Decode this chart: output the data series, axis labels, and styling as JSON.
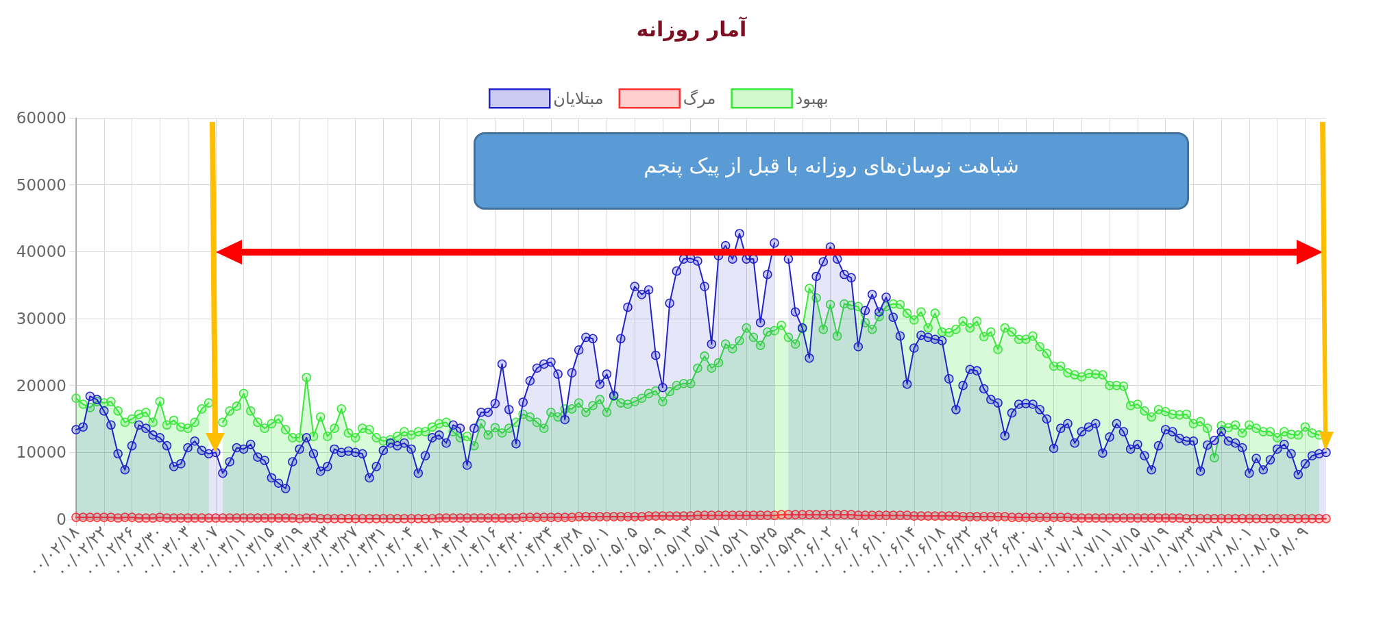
{
  "chart_data": {
    "type": "area",
    "title": "آمار روزانه",
    "annotations": [
      "شباهت نوسان‌های روزانه با قبل از پیک پنجم"
    ],
    "categories": [
      "۰۰/۰۲/۱۸",
      null,
      null,
      null,
      "۰۰/۰۲/۲۲",
      null,
      null,
      null,
      "۰۰/۰۲/۲۶",
      null,
      null,
      null,
      "۰۰/۰۲/۳۰",
      null,
      null,
      null,
      "۰۰/۰۳/۰۳",
      null,
      null,
      null,
      "۰۰/۰۳/۰۷",
      null,
      null,
      null,
      "۰۰/۰۳/۱۱",
      null,
      null,
      null,
      "۰۰/۰۳/۱۵",
      null,
      null,
      null,
      "۰۰/۰۳/۱۹",
      null,
      null,
      null,
      "۰۰/۰۳/۲۳",
      null,
      null,
      null,
      "۰۰/۰۳/۲۷",
      null,
      null,
      null,
      "۰۰/۰۳/۳۱",
      null,
      null,
      null,
      "۰۰/۰۴/۰۴",
      null,
      null,
      null,
      "۰۰/۰۴/۰۸",
      null,
      null,
      null,
      "۰۰/۰۴/۱۲",
      null,
      null,
      null,
      "۰۰/۰۴/۱۶",
      null,
      null,
      null,
      "۰۰/۰۴/۲۰",
      null,
      null,
      null,
      "۰۰/۰۴/۲۴",
      null,
      null,
      null,
      "۰۰/۰۴/۲۸",
      null,
      null,
      null,
      "۰۰/۰۵/۰۱",
      null,
      null,
      null,
      "۰۰/۰۵/۰۵",
      null,
      null,
      null,
      "۰۰/۰۵/۰۹",
      null,
      null,
      null,
      "۰۰/۰۵/۱۳",
      null,
      null,
      null,
      "۰۰/۰۵/۱۷",
      null,
      null,
      null,
      "۰۰/۰۵/۲۱",
      null,
      null,
      null,
      "۰۰/۰۵/۲۵",
      null,
      null,
      null,
      "۰۰/۰۵/۲۹",
      null,
      null,
      null,
      "۰۰/۰۶/۰۲",
      null,
      null,
      null,
      "۰۰/۰۶/۰۶",
      null,
      null,
      null,
      "۰۰/۰۶/۱۰",
      null,
      null,
      null,
      "۰۰/۰۶/۱۴",
      null,
      null,
      null,
      "۰۰/۰۶/۱۸",
      null,
      null,
      null,
      "۰۰/۰۶/۲۲",
      null,
      null,
      null,
      "۰۰/۰۶/۲۶",
      null,
      null,
      null,
      "۰۰/۰۶/۳۰",
      null,
      null,
      null,
      "۰۰/۰۷/۰۳",
      null,
      null,
      null,
      "۰۰/۰۷/۰۷",
      null,
      null,
      null,
      "۰۰/۰۷/۱۱",
      null,
      null,
      null,
      "۰۰/۰۷/۱۵",
      null,
      null,
      null,
      "۰۰/۰۷/۱۹",
      null,
      null,
      null,
      "۰۰/۰۷/۲۳",
      null,
      null,
      null,
      "۰۰/۰۷/۲۷",
      null,
      null,
      null,
      "۰۰/۰۸/۰۱",
      null,
      null,
      null,
      "۰۰/۰۸/۰۵",
      null,
      null,
      null,
      "۰۰/۰۸/۰۹",
      null,
      null,
      null
    ],
    "series": [
      {
        "name": "مبتلایان",
        "color": "#2323cc",
        "values": [
          13400,
          13800,
          18400,
          17900,
          16200,
          14100,
          9800,
          7400,
          11000,
          14100,
          13600,
          12600,
          12200,
          11000,
          7900,
          8300,
          10700,
          11700,
          10300,
          9800,
          10000,
          6900,
          8600,
          10700,
          10500,
          11200,
          9300,
          8800,
          6200,
          5400,
          4600,
          8600,
          10500,
          12200,
          9800,
          7200,
          7900,
          10500,
          10000,
          10200,
          10000,
          9800,
          6200,
          7900,
          10300,
          11400,
          11000,
          11400,
          10500,
          6900,
          9500,
          12200,
          12600,
          11400,
          14100,
          13600,
          8100,
          13600,
          16000,
          16000,
          17300,
          23200,
          16400,
          11300,
          17500,
          20700,
          22600,
          23200,
          23500,
          21700,
          14900,
          21900,
          25300,
          27200,
          27000,
          20200,
          21700,
          18500,
          27000,
          31700,
          34800,
          33600,
          34300,
          24500,
          19700,
          32300,
          37100,
          38900,
          39000,
          38600,
          34800,
          26200,
          39400,
          40900,
          38900,
          42700,
          38900,
          38900,
          29400,
          36600,
          41300,
          null,
          38900,
          31000,
          28600,
          24100,
          36300,
          38500,
          40700,
          38900,
          36600,
          36100,
          25800,
          31200,
          33600,
          31000,
          33200,
          30200,
          27400,
          20200,
          25600,
          27500,
          27200,
          26900,
          26700,
          21000,
          16400,
          20000,
          22400,
          22200,
          19500,
          17900,
          17400,
          12500,
          15900,
          17200,
          17300,
          17200,
          16400,
          15000,
          10600,
          13600,
          14300,
          11400,
          13100,
          13800,
          14300,
          9900,
          12300,
          14300,
          13100,
          10500,
          11200,
          9500,
          7400,
          11000,
          13400,
          13100,
          12100,
          11700,
          11700,
          7200,
          11100,
          11800,
          13100,
          11700,
          11400,
          10700,
          6900,
          9100,
          7400,
          8900,
          10500,
          11200,
          9800,
          6700,
          8300,
          9500,
          9800,
          10000
        ]
      },
      {
        "name": "مرگ",
        "color": "#ff3333",
        "values": [
          300,
          300,
          300,
          300,
          300,
          300,
          200,
          300,
          300,
          200,
          200,
          200,
          300,
          200,
          200,
          200,
          200,
          200,
          200,
          200,
          200,
          200,
          200,
          200,
          200,
          200,
          200,
          200,
          200,
          200,
          200,
          200,
          100,
          200,
          200,
          100,
          100,
          100,
          100,
          100,
          100,
          100,
          100,
          100,
          100,
          100,
          100,
          100,
          100,
          100,
          100,
          100,
          200,
          200,
          200,
          200,
          200,
          200,
          200,
          200,
          200,
          200,
          200,
          200,
          300,
          300,
          300,
          300,
          300,
          300,
          300,
          300,
          400,
          400,
          400,
          400,
          400,
          400,
          400,
          400,
          400,
          400,
          500,
          500,
          500,
          500,
          500,
          500,
          500,
          600,
          600,
          600,
          600,
          600,
          600,
          600,
          600,
          600,
          600,
          600,
          600,
          700,
          700,
          700,
          700,
          700,
          700,
          700,
          700,
          700,
          700,
          700,
          600,
          600,
          600,
          600,
          600,
          600,
          600,
          600,
          500,
          500,
          500,
          500,
          500,
          500,
          500,
          400,
          400,
          400,
          400,
          400,
          400,
          400,
          300,
          300,
          300,
          300,
          300,
          300,
          300,
          300,
          300,
          200,
          200,
          200,
          200,
          200,
          200,
          200,
          200,
          200,
          200,
          200,
          200,
          200,
          200,
          200,
          200,
          100,
          100,
          100,
          100,
          100,
          100,
          100,
          100,
          100,
          100,
          100,
          100,
          100,
          100,
          100,
          100,
          100,
          100,
          100,
          100,
          100
        ]
      },
      {
        "name": "بهبود",
        "color": "#3be63b",
        "values": [
          18100,
          17200,
          16700,
          17600,
          17400,
          17600,
          16200,
          14500,
          15000,
          15700,
          16000,
          14500,
          17600,
          14100,
          14800,
          13800,
          13600,
          14500,
          16500,
          17400,
          null,
          14500,
          16200,
          16900,
          18800,
          16200,
          14500,
          13600,
          14300,
          15000,
          13400,
          12200,
          12200,
          21200,
          12400,
          15300,
          12400,
          13600,
          16500,
          12900,
          12200,
          13600,
          13400,
          12200,
          11700,
          11900,
          12400,
          13100,
          12600,
          13100,
          13100,
          13800,
          14300,
          14500,
          13100,
          12200,
          12400,
          11000,
          14300,
          12600,
          13700,
          12900,
          13600,
          14500,
          15700,
          15300,
          14500,
          13600,
          16000,
          15300,
          16500,
          16500,
          17400,
          16000,
          17000,
          17900,
          16000,
          18400,
          17400,
          17200,
          17600,
          18100,
          18800,
          19200,
          17600,
          19100,
          20000,
          20300,
          20300,
          22600,
          24400,
          22600,
          23400,
          26200,
          25500,
          26700,
          28600,
          27200,
          26000,
          28000,
          28200,
          29000,
          27200,
          26200,
          28500,
          34500,
          33100,
          28400,
          32100,
          27400,
          32200,
          32000,
          31800,
          29400,
          28400,
          30300,
          31800,
          32200,
          32100,
          30800,
          29800,
          31000,
          28600,
          30800,
          28000,
          27900,
          28400,
          29600,
          28600,
          29600,
          27300,
          28000,
          25400,
          28600,
          28000,
          26900,
          26900,
          27400,
          25800,
          24800,
          22900,
          22900,
          21900,
          21600,
          21300,
          21800,
          21700,
          21600,
          20000,
          20000,
          19900,
          17000,
          17200,
          16200,
          15300,
          16400,
          16100,
          15700,
          15600,
          15700,
          14300,
          14600,
          13600,
          9200,
          14000,
          13700,
          14100,
          12900,
          14100,
          13600,
          13100,
          13100,
          12200,
          13100,
          12700,
          12600,
          13800,
          12900,
          12600,
          null
        ]
      }
    ],
    "ylim": [
      0,
      60000
    ],
    "yticks": [
      0,
      10000,
      20000,
      30000,
      40000,
      50000,
      60000
    ],
    "grid": true,
    "legend": "top",
    "marker": "circle"
  }
}
